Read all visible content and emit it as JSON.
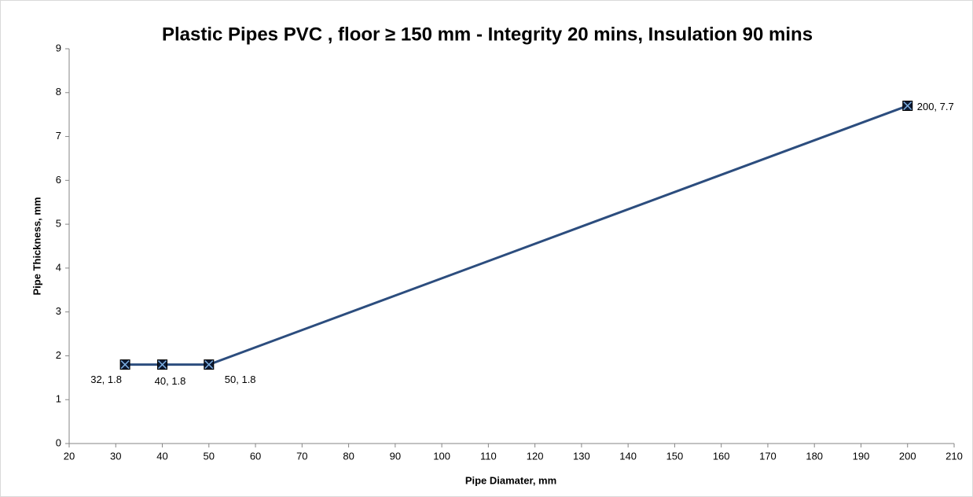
{
  "chart_data": {
    "type": "line",
    "title": "Plastic Pipes PVC , floor ≥ 150 mm -  Integrity 20 mins, Insulation 90 mins",
    "x_label": "Pipe Diamater, mm",
    "y_label": "Pipe Thickness, mm",
    "x": [
      32,
      40,
      50,
      200
    ],
    "values": [
      1.8,
      1.8,
      1.8,
      7.7
    ],
    "value_labels": [
      "32, 1.8",
      "40, 1.8",
      "50, 1.8",
      "200, 7.7"
    ],
    "color": "#2c4d7e",
    "xlim": [
      20,
      210
    ],
    "xticks": [
      20,
      30,
      40,
      50,
      60,
      70,
      80,
      90,
      100,
      110,
      120,
      130,
      140,
      150,
      160,
      170,
      180,
      190,
      200,
      210
    ],
    "ylim": [
      0,
      9
    ],
    "yticks": [
      0,
      1,
      2,
      3,
      4,
      5,
      6,
      7,
      8,
      9
    ],
    "grid": false
  }
}
